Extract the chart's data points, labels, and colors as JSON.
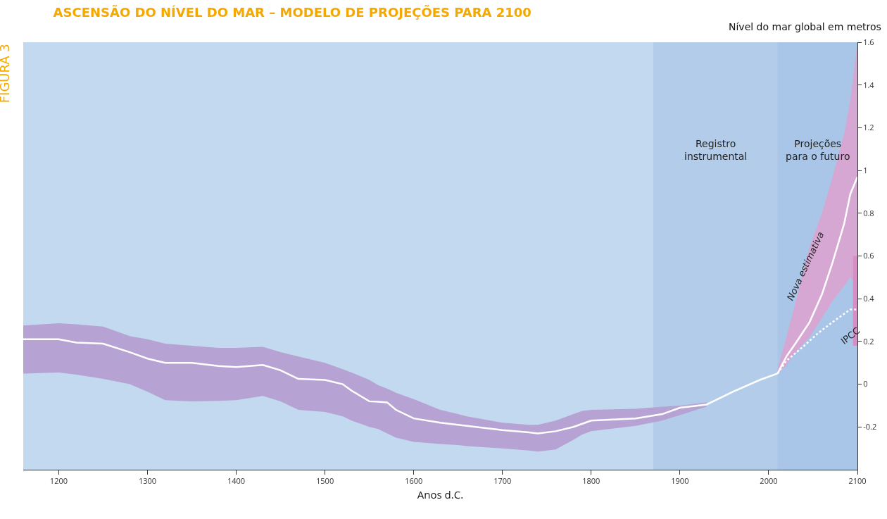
{
  "chart_data": {
    "type": "line",
    "title": "ASCENSÃO DO NÍVEL DO MAR – MODELO DE PROJEÇÕES PARA 2100",
    "xlabel": "Anos d.C.",
    "ylabel": "Nível do mar global em metros",
    "annotations": [
      "FIGURA 3"
    ],
    "xlim": [
      1160,
      2100
    ],
    "xticks": [
      1200,
      1300,
      1400,
      1500,
      1600,
      1700,
      1800,
      1900,
      2000,
      2100
    ],
    "ylim": [
      -0.4,
      1.6
    ],
    "yticks": [
      -0.2,
      0,
      0.2,
      0.4,
      0.6,
      0.8,
      1.0,
      1.2,
      1.4,
      1.6
    ],
    "grid": false,
    "legend": false,
    "marker": "none",
    "bands": [
      {
        "axis": "x",
        "from": 1870,
        "to": 2010,
        "label": "Registro instrumental",
        "color": "#a3c0e4"
      },
      {
        "axis": "x",
        "from": 2010,
        "to": 2100,
        "label": "Projeções para o futuro",
        "color": "#8fb3df"
      }
    ],
    "series": [
      {
        "color": "#ffffff",
        "line_style": "solid",
        "x": [
          1160,
          1200,
          1220,
          1250,
          1280,
          1300,
          1320,
          1350,
          1380,
          1400,
          1430,
          1450,
          1470,
          1500,
          1520,
          1530,
          1550,
          1560,
          1570,
          1580,
          1600,
          1630,
          1650,
          1660,
          1700,
          1730,
          1740,
          1760,
          1780,
          1790,
          1800,
          1850,
          1880,
          1900,
          1930,
          1960,
          1990,
          2010
        ],
        "values": [
          0.21,
          0.21,
          0.195,
          0.19,
          0.15,
          0.12,
          0.1,
          0.1,
          0.085,
          0.08,
          0.09,
          0.065,
          0.025,
          0.02,
          0.0,
          -0.03,
          -0.08,
          -0.082,
          -0.085,
          -0.12,
          -0.16,
          -0.18,
          -0.19,
          -0.195,
          -0.215,
          -0.225,
          -0.23,
          -0.22,
          -0.2,
          -0.185,
          -0.17,
          -0.16,
          -0.14,
          -0.11,
          -0.095,
          -0.035,
          0.02,
          0.05
        ],
        "upper": [
          0.275,
          0.285,
          0.28,
          0.27,
          0.225,
          0.21,
          0.19,
          0.18,
          0.17,
          0.17,
          0.175,
          0.15,
          0.13,
          0.1,
          0.07,
          0.055,
          0.02,
          -0.005,
          -0.02,
          -0.04,
          -0.07,
          -0.12,
          -0.14,
          -0.15,
          -0.18,
          -0.19,
          -0.19,
          -0.17,
          -0.14,
          -0.125,
          -0.12,
          -0.115,
          -0.105,
          -0.1,
          -0.085,
          null,
          null,
          null
        ],
        "lower": [
          0.05,
          0.055,
          0.045,
          0.025,
          0.0,
          -0.035,
          -0.075,
          -0.08,
          -0.078,
          -0.075,
          -0.055,
          -0.08,
          -0.12,
          -0.13,
          -0.15,
          -0.17,
          -0.2,
          -0.21,
          -0.23,
          -0.25,
          -0.27,
          -0.28,
          -0.285,
          -0.29,
          -0.3,
          -0.31,
          -0.315,
          -0.305,
          -0.26,
          -0.235,
          -0.22,
          -0.195,
          -0.17,
          -0.145,
          -0.105,
          null,
          null,
          null
        ]
      },
      {
        "name": "Nova estimativa",
        "color": "#ffffff",
        "line_style": "solid",
        "x": [
          2010,
          2020,
          2030,
          2046,
          2060,
          2072,
          2085,
          2092,
          2100
        ],
        "values": [
          0.05,
          0.13,
          0.19,
          0.29,
          0.42,
          0.57,
          0.75,
          0.89,
          0.97
        ],
        "upper": [
          0.07,
          0.22,
          0.38,
          0.64,
          0.8,
          0.97,
          1.17,
          1.33,
          1.6
        ],
        "lower": [
          0.05,
          0.09,
          0.15,
          0.22,
          0.31,
          0.39,
          0.46,
          0.5,
          0.46
        ]
      },
      {
        "name": "IPCC",
        "color": "#ffffff",
        "line_style": "dotted",
        "x": [
          2010,
          2020,
          2040,
          2056,
          2075,
          2092,
          2095,
          2100
        ],
        "values": [
          0.05,
          0.11,
          0.18,
          0.24,
          0.3,
          0.35,
          0.35,
          0.35
        ],
        "upper": [
          null,
          null,
          null,
          null,
          null,
          null,
          0.6,
          0.6
        ],
        "lower": [
          null,
          null,
          null,
          null,
          null,
          null,
          0.18,
          0.18
        ]
      }
    ]
  }
}
